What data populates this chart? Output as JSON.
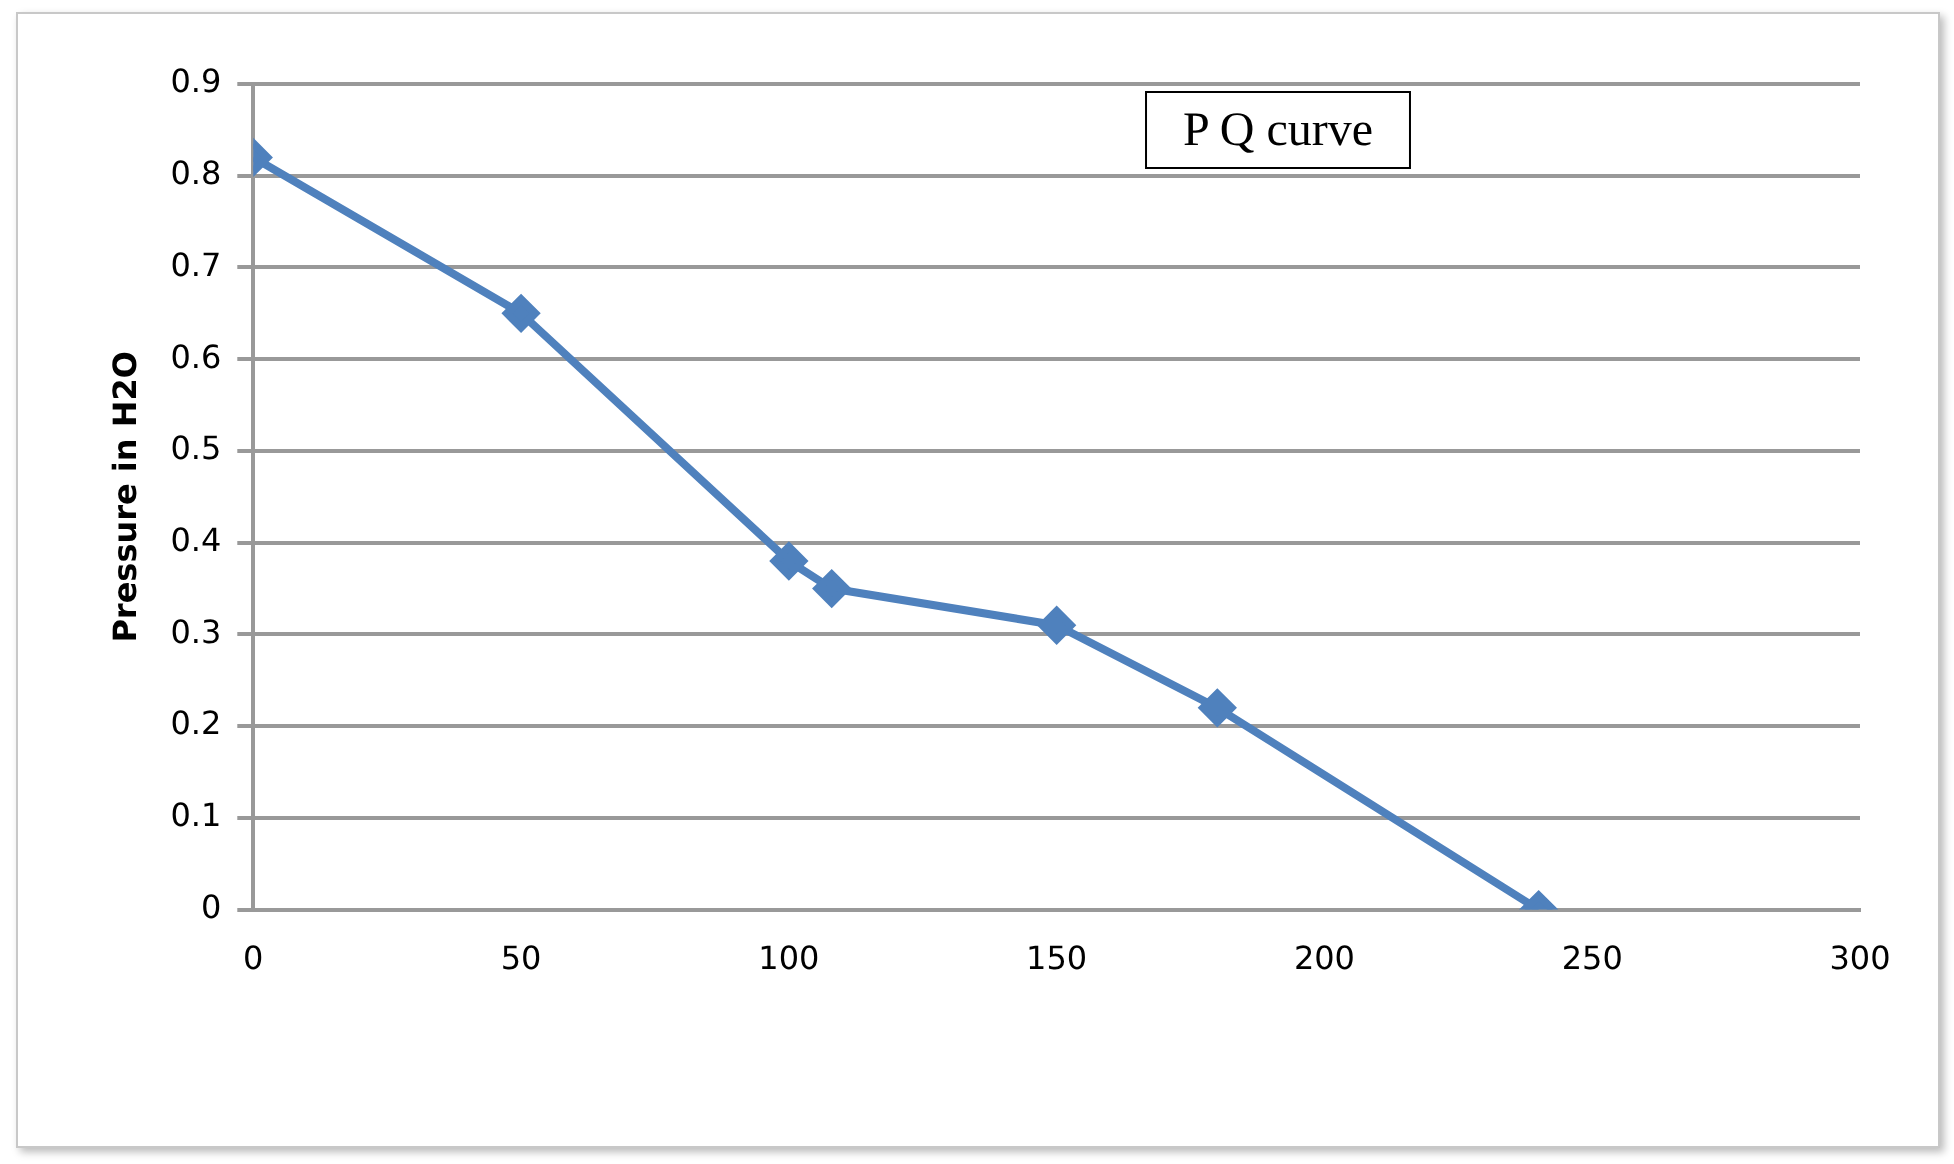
{
  "chart_data": {
    "type": "line",
    "title": "P Q curve",
    "ylabel": "Pressure in H2O",
    "x": [
      0,
      50,
      100,
      108,
      150,
      180,
      240
    ],
    "series": [
      {
        "color": "#4f81bd",
        "values": [
          0.82,
          0.65,
          0.38,
          0.35,
          0.31,
          0.22,
          0
        ]
      }
    ],
    "xlim": [
      0,
      300
    ],
    "xticks": [
      0,
      50,
      100,
      150,
      200,
      250,
      300
    ],
    "ylim": [
      0,
      0.9
    ],
    "yticks": [
      0,
      0.1,
      0.2,
      0.3,
      0.4,
      0.5,
      0.6,
      0.7,
      0.8,
      0.9
    ],
    "grid": "y",
    "legend": false,
    "marker": "diamond",
    "line_style": "solid"
  }
}
